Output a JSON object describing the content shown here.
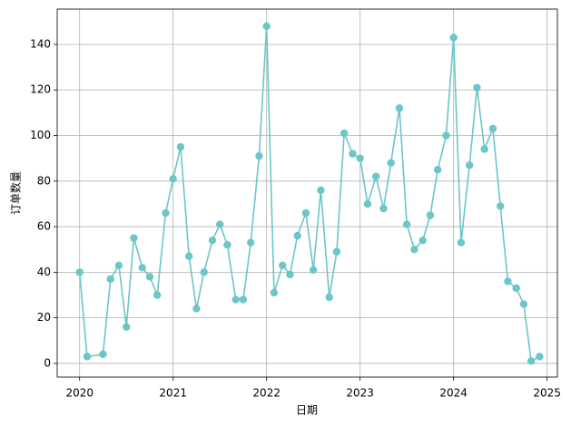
{
  "chart_data": {
    "type": "line",
    "xlabel": "日期",
    "ylabel": "订单数量",
    "x": [
      2020.0,
      2020.08,
      2020.25,
      2020.33,
      2020.42,
      2020.5,
      2020.58,
      2020.67,
      2020.75,
      2020.83,
      2020.92,
      2021.0,
      2021.08,
      2021.17,
      2021.25,
      2021.33,
      2021.42,
      2021.5,
      2021.58,
      2021.67,
      2021.75,
      2021.83,
      2021.92,
      2022.0,
      2022.08,
      2022.17,
      2022.25,
      2022.33,
      2022.42,
      2022.5,
      2022.58,
      2022.67,
      2022.75,
      2022.83,
      2022.92,
      2023.0,
      2023.08,
      2023.17,
      2023.25,
      2023.33,
      2023.42,
      2023.5,
      2023.58,
      2023.67,
      2023.75,
      2023.83,
      2023.92,
      2024.0,
      2024.08,
      2024.17,
      2024.25,
      2024.33,
      2024.42,
      2024.5,
      2024.58,
      2024.67,
      2024.75,
      2024.83,
      2024.92
    ],
    "series": [
      {
        "color": "#6cc5c8",
        "values": [
          40,
          3,
          4,
          37,
          43,
          16,
          55,
          42,
          38,
          30,
          66,
          81,
          95,
          47,
          24,
          40,
          54,
          61,
          52,
          28,
          28,
          53,
          91,
          148,
          31,
          43,
          39,
          56,
          66,
          41,
          76,
          29,
          49,
          101,
          92,
          90,
          70,
          82,
          68,
          88,
          112,
          61,
          50,
          54,
          65,
          85,
          100,
          143,
          53,
          87,
          121,
          94,
          103,
          69,
          36,
          33,
          26,
          1,
          3
        ]
      }
    ],
    "xlim": [
      2019.76,
      2025.11
    ],
    "xticks": [
      2020,
      2021,
      2022,
      2023,
      2024,
      2025
    ],
    "ylim": [
      -6,
      155.5
    ],
    "yticks": [
      0,
      20,
      40,
      60,
      80,
      100,
      120,
      140
    ],
    "grid": true
  }
}
